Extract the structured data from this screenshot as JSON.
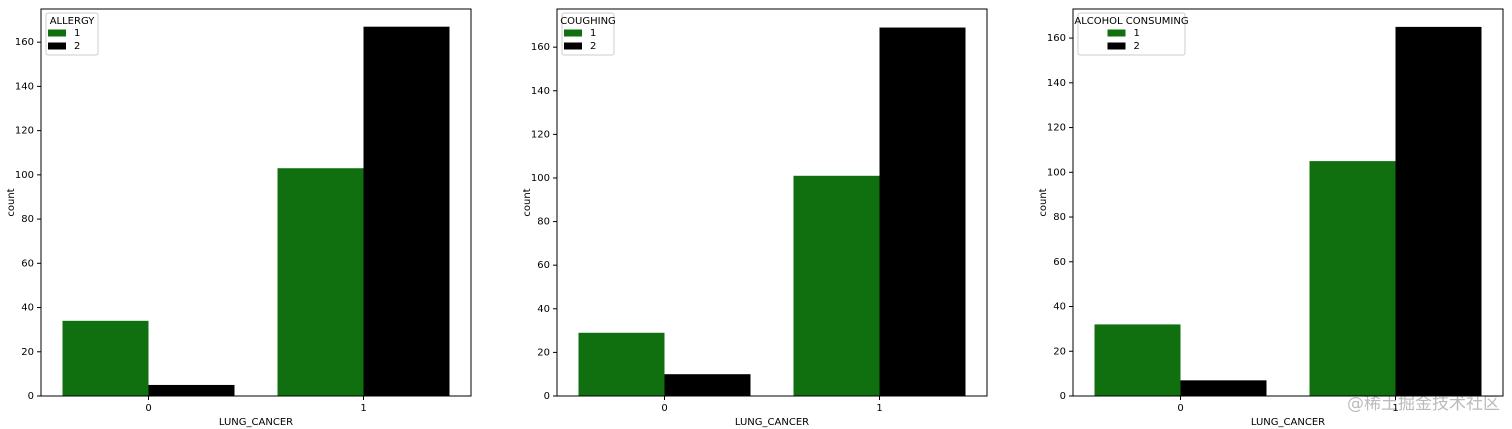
{
  "chart_data": [
    {
      "type": "bar",
      "legend_title": "ALLERGY",
      "xlabel": "LUNG_CANCER",
      "ylabel": "count",
      "categories": [
        "0",
        "1"
      ],
      "series": [
        {
          "name": "1",
          "color": "#107010",
          "values": [
            34,
            103
          ]
        },
        {
          "name": "2",
          "color": "#000000",
          "values": [
            5,
            167
          ]
        }
      ],
      "ylim": [
        0,
        175
      ],
      "yticks": [
        0,
        20,
        40,
        60,
        80,
        100,
        120,
        140,
        160
      ],
      "legend": "upper left"
    },
    {
      "type": "bar",
      "legend_title": "COUGHING",
      "xlabel": "LUNG_CANCER",
      "ylabel": "count",
      "categories": [
        "0",
        "1"
      ],
      "series": [
        {
          "name": "1",
          "color": "#107010",
          "values": [
            29,
            101
          ]
        },
        {
          "name": "2",
          "color": "#000000",
          "values": [
            10,
            169
          ]
        }
      ],
      "ylim": [
        0,
        177.5
      ],
      "yticks": [
        0,
        20,
        40,
        60,
        80,
        100,
        120,
        140,
        160
      ],
      "legend": "upper left"
    },
    {
      "type": "bar",
      "legend_title": "ALCOHOL CONSUMING",
      "xlabel": "LUNG_CANCER",
      "ylabel": "count",
      "categories": [
        "0",
        "1"
      ],
      "series": [
        {
          "name": "1",
          "color": "#107010",
          "values": [
            32,
            105
          ]
        },
        {
          "name": "2",
          "color": "#000000",
          "values": [
            7,
            165
          ]
        }
      ],
      "ylim": [
        0,
        173
      ],
      "yticks": [
        0,
        20,
        40,
        60,
        80,
        100,
        120,
        140,
        160
      ],
      "legend": "upper left"
    }
  ],
  "watermark": "@稀土掘金技术社区"
}
